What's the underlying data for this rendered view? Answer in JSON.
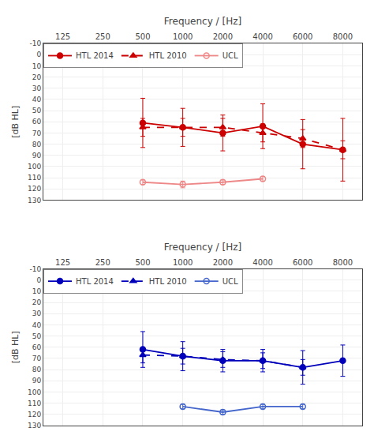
{
  "chart_data": [
    {
      "type": "line",
      "xlabel": "Frequency / [Hz]",
      "ylabel": "[dB HL]",
      "categories": [
        "125",
        "250",
        "500",
        "1000",
        "2000",
        "4000",
        "6000",
        "8000"
      ],
      "series": [
        {
          "name": "HTL 2014",
          "color": "#cc0000",
          "marker": "circle",
          "line_style": "solid",
          "values": [
            null,
            null,
            61,
            65,
            70,
            64,
            80,
            85
          ],
          "errors": [
            null,
            null,
            22,
            17,
            16,
            20,
            22,
            28
          ]
        },
        {
          "name": "HTL 2010",
          "color": "#cc0000",
          "marker": "triangle-up",
          "line_style": "dashed",
          "values": [
            null,
            null,
            65,
            65,
            65,
            70,
            75,
            85
          ],
          "errors": [
            null,
            null,
            8,
            8,
            8,
            8,
            8,
            8
          ]
        },
        {
          "name": "UCL",
          "color": "#ee8888",
          "marker": "circle-open",
          "line_style": "solid",
          "values": [
            null,
            null,
            114,
            116,
            114,
            111,
            null,
            null
          ],
          "errors": [
            null,
            null,
            2,
            3,
            2,
            2,
            null,
            null
          ]
        }
      ],
      "ylim": [
        130,
        -10
      ],
      "yticks": [
        -10,
        0,
        10,
        20,
        30,
        40,
        50,
        60,
        70,
        80,
        90,
        100,
        110,
        120,
        130
      ],
      "grid": true,
      "legend": "upper left"
    },
    {
      "type": "line",
      "xlabel": "Frequency / [Hz]",
      "ylabel": "[dB HL]",
      "categories": [
        "125",
        "250",
        "500",
        "1000",
        "2000",
        "4000",
        "6000",
        "8000"
      ],
      "series": [
        {
          "name": "HTL 2014",
          "color": "#0000bb",
          "marker": "circle",
          "line_style": "solid",
          "values": [
            null,
            null,
            62,
            68,
            72,
            72,
            78,
            72
          ],
          "errors": [
            null,
            null,
            16,
            13,
            10,
            10,
            15,
            14
          ]
        },
        {
          "name": "HTL 2010",
          "color": "#0000bb",
          "marker": "triangle-up",
          "line_style": "dashed",
          "values": [
            null,
            null,
            67,
            68,
            71,
            72,
            78,
            null
          ],
          "errors": [
            null,
            null,
            7,
            7,
            7,
            7,
            7,
            null
          ]
        },
        {
          "name": "UCL",
          "color": "#4466cc",
          "marker": "circle-open",
          "line_style": "solid",
          "values": [
            null,
            null,
            null,
            113,
            118,
            113,
            113,
            null
          ],
          "errors": [
            null,
            null,
            null,
            2,
            2,
            2,
            2,
            null
          ]
        }
      ],
      "ylim": [
        130,
        -10
      ],
      "yticks": [
        -10,
        0,
        10,
        20,
        30,
        40,
        50,
        60,
        70,
        80,
        90,
        100,
        110,
        120,
        130
      ],
      "grid": true,
      "legend": "upper left"
    }
  ]
}
